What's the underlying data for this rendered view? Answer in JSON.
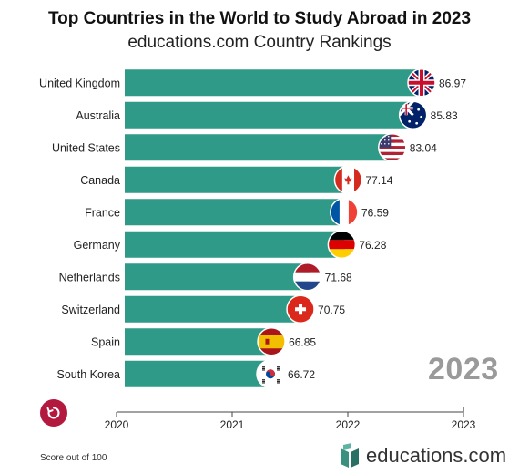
{
  "header": {
    "title": "Top Countries in the World to Study Abroad in 2023",
    "subtitle": "educations.com Country Rankings"
  },
  "current_year": "2023",
  "footnote": "Score out of 100",
  "brand": {
    "name": "educations.com"
  },
  "colors": {
    "bar": "#2f9a87",
    "accent": "#b3193f",
    "year": "#9a9a9a"
  },
  "chart_data": {
    "type": "bar",
    "orientation": "horizontal",
    "title": "Top Countries in the World to Study Abroad in 2023",
    "subtitle": "educations.com Country Rankings",
    "categories": [
      "United Kingdom",
      "Australia",
      "United States",
      "Canada",
      "France",
      "Germany",
      "Netherlands",
      "Switzerland",
      "Spain",
      "South Korea"
    ],
    "values": [
      86.97,
      85.83,
      83.04,
      77.14,
      76.59,
      76.28,
      71.68,
      70.75,
      66.85,
      66.72
    ],
    "value_labels": [
      "86.97",
      "85.83",
      "83.04",
      "77.14",
      "76.59",
      "76.28",
      "71.68",
      "70.75",
      "66.85",
      "66.72"
    ],
    "flags": [
      "uk-flag",
      "australia-flag",
      "usa-flag",
      "canada-flag",
      "france-flag",
      "germany-flag",
      "netherlands-flag",
      "switzerland-flag",
      "spain-flag",
      "south-korea-flag"
    ],
    "x_ticks": [
      "2020",
      "2021",
      "2022",
      "2023"
    ],
    "xlabel": "",
    "ylabel": "",
    "grid": false,
    "legend": "none"
  }
}
